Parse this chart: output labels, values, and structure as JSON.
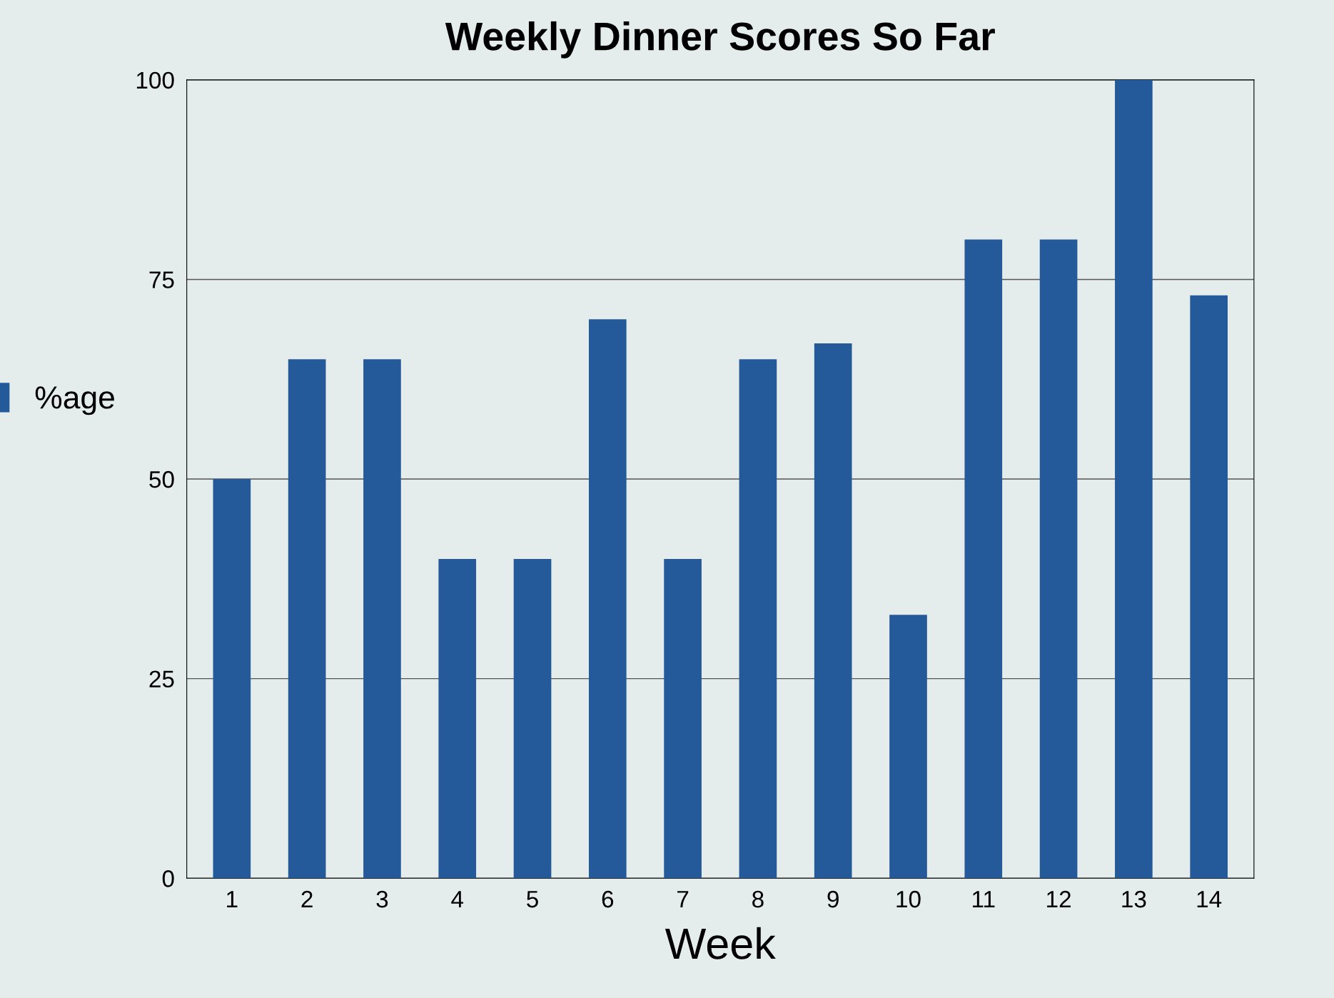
{
  "chart_data": {
    "type": "bar",
    "title": "Weekly Dinner Scores So Far",
    "xlabel": "Week",
    "categories": [
      "1",
      "2",
      "3",
      "4",
      "5",
      "6",
      "7",
      "8",
      "9",
      "10",
      "11",
      "12",
      "13",
      "14"
    ],
    "series": [
      {
        "name": "%age",
        "color": "#24599a",
        "values": [
          50,
          65,
          65,
          40,
          40,
          70,
          40,
          65,
          67,
          33,
          80,
          80,
          100,
          73
        ]
      }
    ],
    "ylim": [
      0,
      100
    ],
    "yticks": [
      0,
      25,
      50,
      75,
      100
    ],
    "grid": "y",
    "legend": "left"
  }
}
